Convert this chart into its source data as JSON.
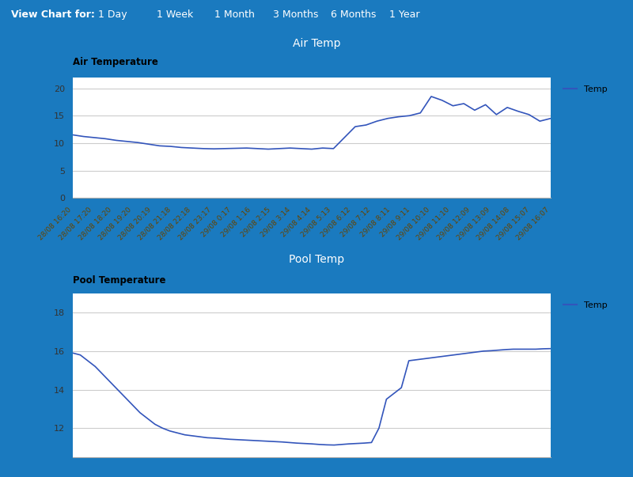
{
  "header_bg": "#0d3278",
  "outer_bg": "#1a7abf",
  "panel_bg": "#ffffff",
  "title_bar_bg": "#0d3278",
  "title_bar_text_color": "#ffffff",
  "line_color": "#3355bb",
  "grid_color": "#cccccc",
  "tick_color": "#664400",
  "ytick_color": "#333333",
  "header_text": "View Chart for:",
  "header_links": [
    "1 Day",
    "1 Week",
    "1 Month",
    "3 Months",
    "6 Months",
    "1 Year"
  ],
  "air_title": "Air Temp",
  "air_chart_label": "Air Temperature",
  "pool_title": "Pool Temp",
  "pool_chart_label": "Pool Temperature",
  "legend_label": "Temp",
  "air_ylim": [
    0,
    22
  ],
  "air_yticks": [
    0,
    5,
    10,
    15,
    20
  ],
  "pool_ylim": [
    10.5,
    19
  ],
  "pool_yticks": [
    12,
    14,
    16,
    18
  ],
  "xtick_labels": [
    "28/08 16:20",
    "28/08 17:20",
    "28/08 18:20",
    "28/08 19:20",
    "28/08 20:19",
    "28/08 21:18",
    "28/08 22:18",
    "28/08 23:17",
    "29/08 0:17",
    "29/08 1:16",
    "29/08 2:15",
    "29/08 3:14",
    "29/08 4:14",
    "29/08 5:13",
    "29/08 6:12",
    "29/08 7:12",
    "29/08 8:11",
    "29/08 9:11",
    "29/08 10:10",
    "29/08 11:10",
    "29/08 12:09",
    "29/08 13:09",
    "29/08 14:08",
    "29/08 15:07",
    "29/08 16:07"
  ],
  "air_y": [
    11.5,
    11.2,
    11.0,
    10.8,
    10.5,
    10.3,
    10.1,
    9.8,
    9.5,
    9.4,
    9.2,
    9.1,
    9.0,
    8.95,
    9.0,
    9.05,
    9.1,
    9.0,
    8.9,
    9.0,
    9.1,
    9.0,
    8.9,
    9.1,
    9.0,
    11.0,
    13.0,
    13.3,
    14.0,
    14.5,
    14.8,
    15.0,
    15.5,
    18.5,
    17.8,
    16.8,
    17.2,
    16.0,
    17.0,
    15.2,
    16.5,
    15.8,
    15.2,
    14.0,
    14.5
  ],
  "pool_y": [
    15.9,
    15.8,
    15.5,
    15.2,
    14.8,
    14.4,
    14.0,
    13.6,
    13.2,
    12.8,
    12.5,
    12.2,
    12.0,
    11.85,
    11.75,
    11.65,
    11.6,
    11.55,
    11.5,
    11.48,
    11.45,
    11.42,
    11.4,
    11.38,
    11.36,
    11.34,
    11.32,
    11.3,
    11.28,
    11.25,
    11.22,
    11.2,
    11.18,
    11.15,
    11.13,
    11.12,
    11.15,
    11.18,
    11.2,
    11.22,
    11.25,
    12.0,
    13.5,
    13.8,
    14.1,
    15.5,
    15.55,
    15.6,
    15.65,
    15.7,
    15.75,
    15.8,
    15.85,
    15.9,
    15.95,
    16.0,
    16.02,
    16.05,
    16.08,
    16.1,
    16.1,
    16.1,
    16.1,
    16.12,
    16.13
  ]
}
